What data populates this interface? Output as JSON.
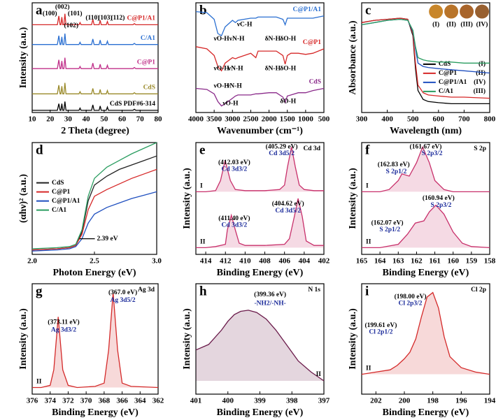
{
  "chart_data": [
    {
      "type": "line",
      "title": "a",
      "xlabel": "2 Theta (degree)",
      "ylabel": "Intensity (a.u.)",
      "xlim": [
        10,
        80
      ],
      "xticks": [
        10,
        20,
        30,
        40,
        50,
        60,
        70,
        80
      ],
      "ylim": [
        0,
        100
      ],
      "legend": "right",
      "x": [
        10,
        24,
        24.8,
        25.5,
        26,
        26.5,
        27,
        27.6,
        28.2,
        28.8,
        36,
        36.6,
        37.2,
        43,
        43.7,
        44.4,
        47.2,
        47.8,
        48.4,
        51.2,
        51.8,
        52.4,
        66,
        66.8,
        67.6,
        80
      ],
      "series": [
        {
          "name": "C@P1/A1",
          "color": "#d62828",
          "values": [
            80,
            80,
            88,
            80,
            80,
            87,
            80,
            80,
            90,
            80,
            80,
            82,
            80,
            80,
            85,
            80,
            80,
            84,
            80,
            80,
            83,
            80,
            80,
            81,
            80,
            80
          ]
        },
        {
          "name": "C/A1",
          "color": "#2a6fd1",
          "values": [
            62,
            62,
            70,
            62,
            62,
            69,
            62,
            62,
            72,
            62,
            62,
            64,
            62,
            62,
            67,
            62,
            62,
            66,
            62,
            62,
            65,
            62,
            62,
            63,
            62,
            62
          ]
        },
        {
          "name": "C@P1",
          "color": "#c0308a",
          "values": [
            40,
            40,
            48,
            40,
            40,
            47,
            40,
            40,
            50,
            40,
            40,
            42,
            40,
            40,
            45,
            40,
            40,
            44,
            40,
            40,
            43,
            40,
            40,
            41,
            40,
            40
          ]
        },
        {
          "name": "CdS",
          "color": "#9a8a2a",
          "values": [
            17,
            17,
            25,
            17,
            17,
            24,
            17,
            17,
            27,
            17,
            17,
            19,
            17,
            17,
            22,
            17,
            17,
            21,
            17,
            17,
            20,
            17,
            17,
            18,
            17,
            17
          ]
        },
        {
          "name": "CdS PDF#6-314",
          "color": "#000000",
          "values": [
            2,
            2,
            8,
            2,
            2,
            8,
            2,
            2,
            10,
            2,
            2,
            4,
            2,
            2,
            7,
            2,
            2,
            6,
            2,
            2,
            5,
            2,
            2,
            3,
            2,
            2
          ]
        }
      ],
      "annotations": [
        "(100)",
        "(002)",
        "(101)",
        "(102)",
        "(110)",
        "(103)",
        "(112)"
      ]
    },
    {
      "type": "line",
      "title": "b",
      "xlabel": "Wavenumber (cm⁻¹)",
      "xlim": [
        4000,
        500
      ],
      "xticks": [
        4000,
        3500,
        3000,
        2500,
        2000,
        1500,
        1000,
        500
      ],
      "ylim": [
        0,
        100
      ],
      "legend": "right",
      "x": [
        4000,
        3700,
        3500,
        3400,
        3300,
        3200,
        3000,
        2920,
        2850,
        2500,
        2360,
        2300,
        2000,
        1800,
        1620,
        1560,
        1500,
        1400,
        1200,
        1000,
        800,
        500
      ],
      "series": [
        {
          "name": "C@P1/A1",
          "color": "#2a6fd1",
          "values": [
            92,
            91,
            85,
            72,
            70,
            78,
            84,
            82,
            84,
            86,
            86,
            87,
            87,
            87,
            85,
            80,
            86,
            86,
            86,
            86,
            86,
            88
          ]
        },
        {
          "name": "C@P1",
          "color": "#d62828",
          "values": [
            60,
            58,
            52,
            42,
            38,
            45,
            50,
            49,
            50,
            54,
            50,
            56,
            56,
            56,
            52,
            44,
            52,
            54,
            54,
            53,
            54,
            58
          ]
        },
        {
          "name": "CdS",
          "color": "#8a2a8a",
          "values": [
            22,
            21,
            17,
            10,
            6,
            8,
            13,
            15,
            16,
            16,
            17,
            17,
            18,
            18,
            14,
            9,
            15,
            16,
            18,
            18,
            20,
            22
          ]
        }
      ],
      "annotations": [
        "νO-H",
        "νN-H",
        "νC-H",
        "δN-H",
        "δO-H",
        "νO-H",
        "νN-H",
        "δN-H",
        "δO-H",
        "νO-H",
        "νN-H",
        "νO-H",
        "δO-H"
      ]
    },
    {
      "type": "line",
      "title": "c",
      "xlabel": "Wavelength (nm)",
      "ylabel": "Absorbance (a.u.)",
      "xlim": [
        300,
        800
      ],
      "xticks": [
        300,
        400,
        500,
        600,
        700,
        800
      ],
      "ylim": [
        0,
        100
      ],
      "legend": "lower right",
      "x": [
        300,
        350,
        400,
        450,
        480,
        500,
        510,
        520,
        540,
        560,
        600,
        650,
        700,
        800
      ],
      "series": [
        {
          "name": "CdS",
          "color": "#000000",
          "values": [
            82,
            84,
            85,
            86,
            85,
            70,
            40,
            20,
            12,
            10,
            9,
            8,
            8,
            8
          ]
        },
        {
          "name": "C@P1",
          "color": "#d62828",
          "values": [
            82,
            84,
            85,
            86,
            85,
            72,
            45,
            25,
            18,
            16,
            15,
            14,
            14,
            13
          ]
        },
        {
          "name": "C@P1/A1",
          "color": "#1f4fbf",
          "values": [
            80,
            82,
            84,
            85,
            84,
            74,
            58,
            45,
            42,
            41,
            40,
            39,
            38,
            36
          ]
        },
        {
          "name": "C/A1",
          "color": "#2a9d60",
          "values": [
            80,
            82,
            84,
            85,
            84,
            75,
            60,
            50,
            48,
            47,
            46,
            46,
            45,
            45
          ]
        }
      ],
      "legend_notes": [
        "(I)",
        "(II)",
        "(IV)",
        "(III)"
      ],
      "annotations": [
        "(I)",
        "(II)",
        "(III)",
        "(IV)"
      ]
    },
    {
      "type": "line",
      "title": "d",
      "xlabel": "Photon Energy (eV)",
      "ylabel": "(αhν)² (a.u.)",
      "xlim": [
        2,
        3
      ],
      "xticks": [
        {
          "value": 2,
          "label": "2.0"
        },
        2.5,
        {
          "value": 3,
          "label": "3.0"
        }
      ],
      "ylim": [
        0,
        100
      ],
      "legend": "center left",
      "x": [
        2,
        2.2,
        2.3,
        2.35,
        2.4,
        2.45,
        2.5,
        2.6,
        2.7,
        2.8,
        2.9,
        3
      ],
      "series": [
        {
          "name": "CdS",
          "color": "#222222",
          "values": [
            4,
            5,
            6,
            8,
            20,
            48,
            62,
            70,
            76,
            80,
            84,
            88
          ]
        },
        {
          "name": "C@P1",
          "color": "#d62828",
          "values": [
            4,
            5,
            6,
            8,
            18,
            40,
            52,
            58,
            63,
            68,
            72,
            76
          ]
        },
        {
          "name": "C@P1/A1",
          "color": "#1f4fbf",
          "values": [
            3,
            4,
            5,
            7,
            14,
            28,
            36,
            42,
            46,
            50,
            53,
            56
          ]
        },
        {
          "name": "C/A1",
          "color": "#2a9d60",
          "values": [
            5,
            6,
            7,
            9,
            22,
            52,
            68,
            78,
            84,
            90,
            95,
            100
          ]
        }
      ],
      "annotations": [
        "2.39 eV"
      ]
    },
    {
      "type": "line",
      "title": "e",
      "subtitle": "Cd 3d",
      "xlabel": "Binding Energy (eV)",
      "ylabel": "Intensity (a.u.)",
      "xlim": [
        415,
        402
      ],
      "xticks": [
        414,
        412,
        410,
        408,
        406,
        404,
        402
      ],
      "ylim": [
        0,
        100
      ],
      "legend": "left",
      "fill": true,
      "series": [
        {
          "name": "I",
          "color": "#c8306b",
          "x": [
            415,
            414,
            413,
            412.5,
            412.03,
            411.5,
            411,
            410,
            408,
            406.5,
            406,
            405.7,
            405.29,
            404.9,
            404.5,
            404,
            403,
            402
          ],
          "values": [
            56,
            56,
            57,
            66,
            84,
            66,
            58,
            57,
            57,
            58,
            62,
            78,
            96,
            78,
            62,
            58,
            57,
            57
          ]
        },
        {
          "name": "II",
          "color": "#c8306b",
          "x": [
            415,
            414,
            413,
            412,
            411.8,
            411.4,
            411,
            410.6,
            410,
            408,
            406,
            405.5,
            405,
            404.62,
            404.2,
            403.8,
            403,
            402
          ],
          "values": [
            6,
            6,
            7,
            9,
            22,
            35,
            22,
            10,
            8,
            8,
            9,
            14,
            34,
            50,
            34,
            12,
            8,
            8
          ]
        }
      ],
      "annotations": [
        "(405.29 eV)",
        "Cd 3d5/2",
        "(412.03 eV)",
        "Cd 3d3/2",
        "(404.62 eV)",
        "Cd 3d5/2",
        "(411.40 eV)",
        "Cd 3d3/2"
      ]
    },
    {
      "type": "line",
      "title": "f",
      "subtitle": "S 2p",
      "xlabel": "Binding Energy (eV)",
      "ylabel": "Intensity (a.u.)",
      "xlim": [
        165,
        158
      ],
      "xticks": [
        165,
        164,
        163,
        162,
        161,
        160,
        159,
        158
      ],
      "ylim": [
        0,
        100
      ],
      "legend": "left",
      "fill": true,
      "series": [
        {
          "name": "I",
          "color": "#c8306b",
          "x": [
            165,
            164,
            163.5,
            163,
            162.8,
            162.4,
            162,
            161.67,
            161.3,
            161,
            160.5,
            160,
            159,
            158
          ],
          "values": [
            56,
            56,
            58,
            66,
            72,
            70,
            82,
            96,
            82,
            66,
            58,
            56,
            56,
            56
          ]
        },
        {
          "name": "II",
          "color": "#c8306b",
          "x": [
            165,
            164,
            163,
            162.5,
            162.07,
            161.6,
            161.3,
            160.94,
            160.5,
            160,
            159.5,
            159,
            158
          ],
          "values": [
            6,
            6,
            9,
            18,
            28,
            30,
            38,
            44,
            36,
            20,
            10,
            7,
            6
          ]
        }
      ],
      "annotations": [
        "(161.67 eV)",
        "S 2p3/2",
        "(162.83 eV)",
        "S 2p1/2",
        "(160.94 eV)",
        "S 2p3/2",
        "(162.07 eV)",
        "S 2p1/2"
      ]
    },
    {
      "type": "line",
      "title": "g",
      "subtitle": "Ag 3d",
      "xlabel": "Binding Energy (eV)",
      "ylabel": "Intensity (a.u.)",
      "xlim": [
        376,
        362
      ],
      "xticks": [
        376,
        374,
        372,
        370,
        368,
        366,
        364,
        362
      ],
      "ylim": [
        0,
        100
      ],
      "legend": "left",
      "fill": true,
      "series": [
        {
          "name": "II",
          "color": "#d42a2a",
          "x": [
            376,
            375,
            374,
            373.6,
            373.11,
            372.6,
            372,
            371,
            369,
            368,
            367.5,
            367,
            366.5,
            366,
            365,
            362
          ],
          "values": [
            6,
            6,
            8,
            22,
            70,
            22,
            8,
            6,
            7,
            10,
            40,
            92,
            40,
            10,
            7,
            6
          ]
        }
      ],
      "annotations": [
        "(373.11 eV)",
        "Ag 3d3/2",
        "(367.0 eV)",
        "Ag 3d5/2"
      ]
    },
    {
      "type": "line",
      "title": "h",
      "subtitle": "N 1s",
      "xlabel": "Binding Energy (eV)",
      "ylabel": "Intensity (a.u.)",
      "xlim": [
        401,
        397
      ],
      "xticks": [
        401,
        400,
        399,
        398,
        397
      ],
      "ylim": [
        0,
        100
      ],
      "legend": "right",
      "fill": true,
      "series": [
        {
          "name": "II",
          "color": "#6a1a4a",
          "x": [
            401,
            400.6,
            400.2,
            400,
            399.8,
            399.6,
            399.36,
            399.1,
            398.8,
            398.5,
            398.2,
            397.8,
            397.4,
            397
          ],
          "values": [
            40,
            45,
            58,
            66,
            72,
            75,
            76,
            74,
            68,
            58,
            46,
            30,
            20,
            12
          ]
        }
      ],
      "annotations": [
        "(399.36 eV)",
        "-NH2/-NH-"
      ]
    },
    {
      "type": "line",
      "title": "i",
      "subtitle": "Cl 2p",
      "xlabel": "Binding Energy (eV)",
      "ylabel": "Intensity (a.u.)",
      "xlim": [
        203,
        194
      ],
      "xticks": [
        202,
        200,
        198,
        196,
        194
      ],
      "ylim": [
        0,
        100
      ],
      "legend": "left",
      "fill": true,
      "series": [
        {
          "name": "II",
          "color": "#d42a2a",
          "x": [
            203,
            202,
            201,
            200.5,
            200,
            199.61,
            199.2,
            198.8,
            198.4,
            198,
            197.6,
            197.2,
            196.8,
            196,
            195,
            194
          ],
          "values": [
            18,
            20,
            22,
            26,
            32,
            38,
            50,
            70,
            88,
            92,
            78,
            52,
            34,
            24,
            20,
            18
          ]
        }
      ],
      "annotations": [
        "(198.00 eV)",
        "Cl 2p3/2",
        "(199.61 eV)",
        "Cl 2p1/2"
      ]
    }
  ]
}
